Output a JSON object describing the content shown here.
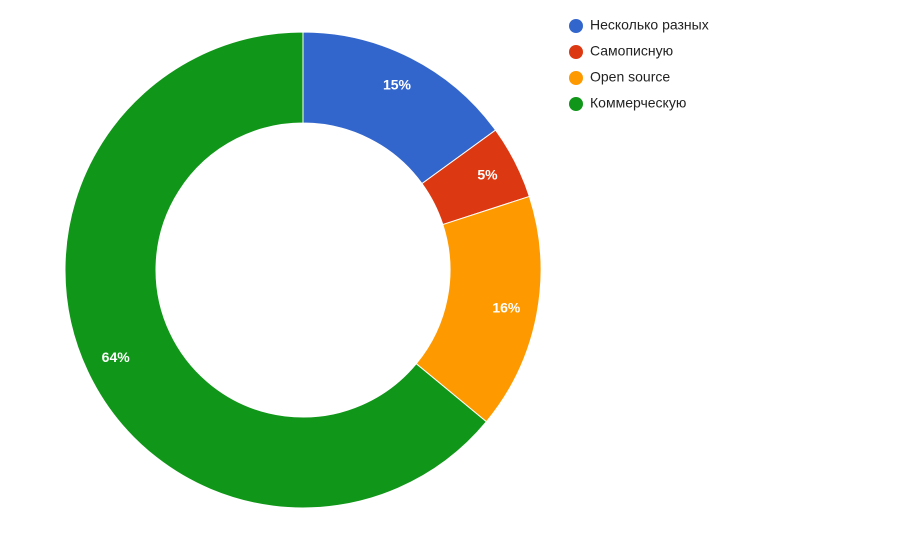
{
  "chart_data": {
    "type": "donut",
    "categories": [
      "Несколько разных",
      "Самописную",
      "Open source",
      "Коммерческую"
    ],
    "values": [
      15,
      5,
      16,
      64
    ],
    "value_labels": [
      "15%",
      "5%",
      "16%",
      "64%"
    ],
    "colors": [
      "#3366cc",
      "#dc3912",
      "#ff9900",
      "#109618"
    ],
    "legend": "top-right"
  }
}
